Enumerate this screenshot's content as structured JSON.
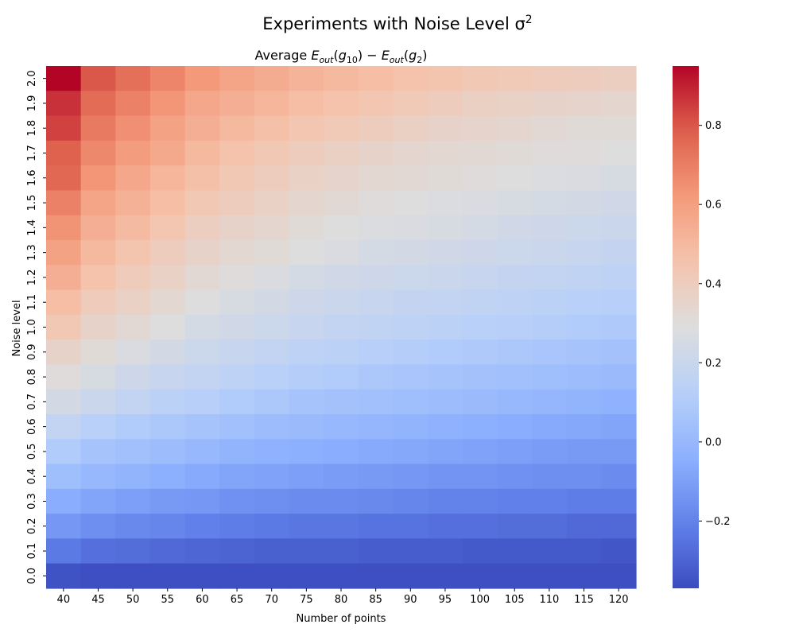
{
  "figure": {
    "suptitle": "Experiments with Noise Level σ²",
    "title_prefix": "Average ",
    "title_mid": " − "
  },
  "chart_data": {
    "type": "heatmap",
    "title": "Average E_out(g_10) − E_out(g_2)",
    "xlabel": "Number of points",
    "ylabel": "Noise level",
    "x": [
      40,
      45,
      50,
      55,
      60,
      65,
      70,
      75,
      80,
      85,
      90,
      95,
      100,
      105,
      110,
      115,
      120
    ],
    "x_labels": [
      "40",
      "45",
      "50",
      "55",
      "60",
      "65",
      "70",
      "75",
      "80",
      "85",
      "90",
      "95",
      "100",
      "105",
      "110",
      "115",
      "120"
    ],
    "y_labels": [
      "2.0",
      "1.9",
      "1.8",
      "1.7",
      "1.6",
      "1.5",
      "1.4",
      "1.3",
      "1.2",
      "1.1",
      "1.0",
      "0.9",
      "0.8",
      "0.7",
      "0.6",
      "0.5",
      "0.4",
      "0.3",
      "0.2",
      "0.1",
      "0.0"
    ],
    "y": [
      2.0,
      1.9,
      1.8,
      1.7,
      1.6,
      1.5,
      1.4,
      1.3,
      1.2,
      1.1,
      1.0,
      0.9,
      0.8,
      0.7,
      0.6,
      0.5,
      0.4,
      0.3,
      0.2,
      0.1,
      0.0
    ],
    "values": [
      [
        0.95,
        0.8,
        0.74,
        0.68,
        0.62,
        0.58,
        0.55,
        0.52,
        0.5,
        0.48,
        0.46,
        0.45,
        0.43,
        0.42,
        0.41,
        0.4,
        0.39
      ],
      [
        0.87,
        0.75,
        0.69,
        0.63,
        0.57,
        0.54,
        0.51,
        0.48,
        0.46,
        0.44,
        0.42,
        0.4,
        0.38,
        0.37,
        0.36,
        0.35,
        0.34
      ],
      [
        0.84,
        0.71,
        0.65,
        0.59,
        0.54,
        0.5,
        0.47,
        0.44,
        0.42,
        0.4,
        0.38,
        0.36,
        0.35,
        0.34,
        0.32,
        0.31,
        0.31
      ],
      [
        0.78,
        0.67,
        0.61,
        0.56,
        0.5,
        0.46,
        0.43,
        0.4,
        0.38,
        0.36,
        0.34,
        0.33,
        0.32,
        0.31,
        0.3,
        0.3,
        0.29
      ],
      [
        0.76,
        0.63,
        0.57,
        0.51,
        0.47,
        0.43,
        0.4,
        0.37,
        0.35,
        0.33,
        0.32,
        0.31,
        0.3,
        0.29,
        0.28,
        0.27,
        0.26
      ],
      [
        0.69,
        0.58,
        0.53,
        0.48,
        0.43,
        0.4,
        0.37,
        0.34,
        0.32,
        0.3,
        0.29,
        0.28,
        0.27,
        0.26,
        0.25,
        0.24,
        0.23
      ],
      [
        0.64,
        0.54,
        0.49,
        0.44,
        0.39,
        0.36,
        0.34,
        0.31,
        0.29,
        0.28,
        0.27,
        0.26,
        0.25,
        0.23,
        0.22,
        0.21,
        0.2
      ],
      [
        0.59,
        0.5,
        0.45,
        0.4,
        0.36,
        0.33,
        0.31,
        0.29,
        0.27,
        0.25,
        0.24,
        0.23,
        0.22,
        0.21,
        0.2,
        0.19,
        0.18
      ],
      [
        0.54,
        0.46,
        0.41,
        0.37,
        0.32,
        0.3,
        0.27,
        0.25,
        0.23,
        0.22,
        0.21,
        0.2,
        0.19,
        0.18,
        0.17,
        0.16,
        0.15
      ],
      [
        0.48,
        0.41,
        0.37,
        0.33,
        0.29,
        0.26,
        0.24,
        0.22,
        0.2,
        0.19,
        0.18,
        0.17,
        0.16,
        0.15,
        0.14,
        0.13,
        0.12
      ],
      [
        0.43,
        0.36,
        0.32,
        0.29,
        0.25,
        0.23,
        0.21,
        0.19,
        0.17,
        0.16,
        0.15,
        0.14,
        0.13,
        0.12,
        0.11,
        0.1,
        0.09
      ],
      [
        0.36,
        0.31,
        0.27,
        0.24,
        0.21,
        0.19,
        0.17,
        0.15,
        0.14,
        0.12,
        0.11,
        0.1,
        0.09,
        0.08,
        0.07,
        0.06,
        0.05
      ],
      [
        0.3,
        0.26,
        0.22,
        0.19,
        0.17,
        0.15,
        0.13,
        0.11,
        0.1,
        0.08,
        0.07,
        0.06,
        0.05,
        0.04,
        0.03,
        0.02,
        0.01
      ],
      [
        0.24,
        0.2,
        0.17,
        0.14,
        0.12,
        0.1,
        0.08,
        0.06,
        0.05,
        0.04,
        0.03,
        0.02,
        0.01,
        0.0,
        -0.01,
        -0.02,
        -0.03
      ],
      [
        0.17,
        0.13,
        0.1,
        0.08,
        0.06,
        0.04,
        0.02,
        0.01,
        0.0,
        -0.01,
        -0.02,
        -0.03,
        -0.04,
        -0.05,
        -0.06,
        -0.07,
        -0.08
      ],
      [
        0.1,
        0.06,
        0.04,
        0.02,
        0.0,
        -0.02,
        -0.03,
        -0.04,
        -0.05,
        -0.06,
        -0.07,
        -0.08,
        -0.09,
        -0.1,
        -0.11,
        -0.12,
        -0.12
      ],
      [
        0.03,
        0.0,
        -0.02,
        -0.04,
        -0.06,
        -0.08,
        -0.09,
        -0.1,
        -0.11,
        -0.12,
        -0.13,
        -0.14,
        -0.14,
        -0.15,
        -0.16,
        -0.16,
        -0.17
      ],
      [
        -0.05,
        -0.08,
        -0.1,
        -0.12,
        -0.13,
        -0.15,
        -0.16,
        -0.17,
        -0.17,
        -0.18,
        -0.19,
        -0.2,
        -0.2,
        -0.21,
        -0.21,
        -0.22,
        -0.22
      ],
      [
        -0.13,
        -0.16,
        -0.18,
        -0.19,
        -0.21,
        -0.22,
        -0.23,
        -0.24,
        -0.24,
        -0.25,
        -0.25,
        -0.26,
        -0.26,
        -0.27,
        -0.27,
        -0.28,
        -0.28
      ],
      [
        -0.23,
        -0.26,
        -0.27,
        -0.28,
        -0.29,
        -0.3,
        -0.31,
        -0.31,
        -0.31,
        -0.32,
        -0.32,
        -0.32,
        -0.33,
        -0.33,
        -0.33,
        -0.33,
        -0.34
      ],
      [
        -0.35,
        -0.36,
        -0.36,
        -0.36,
        -0.36,
        -0.36,
        -0.36,
        -0.36,
        -0.36,
        -0.36,
        -0.36,
        -0.36,
        -0.36,
        -0.36,
        -0.36,
        -0.36,
        -0.36
      ]
    ],
    "vmin": -0.37,
    "vmax": 0.95,
    "colormap": "coolwarm",
    "colorbar_ticks": [
      -0.2,
      0.0,
      0.2,
      0.4,
      0.6,
      0.8
    ],
    "colorbar_tick_labels": [
      "−0.2",
      "0.0",
      "0.2",
      "0.4",
      "0.6",
      "0.8"
    ],
    "grid": false,
    "legend": "colorbar-right"
  }
}
